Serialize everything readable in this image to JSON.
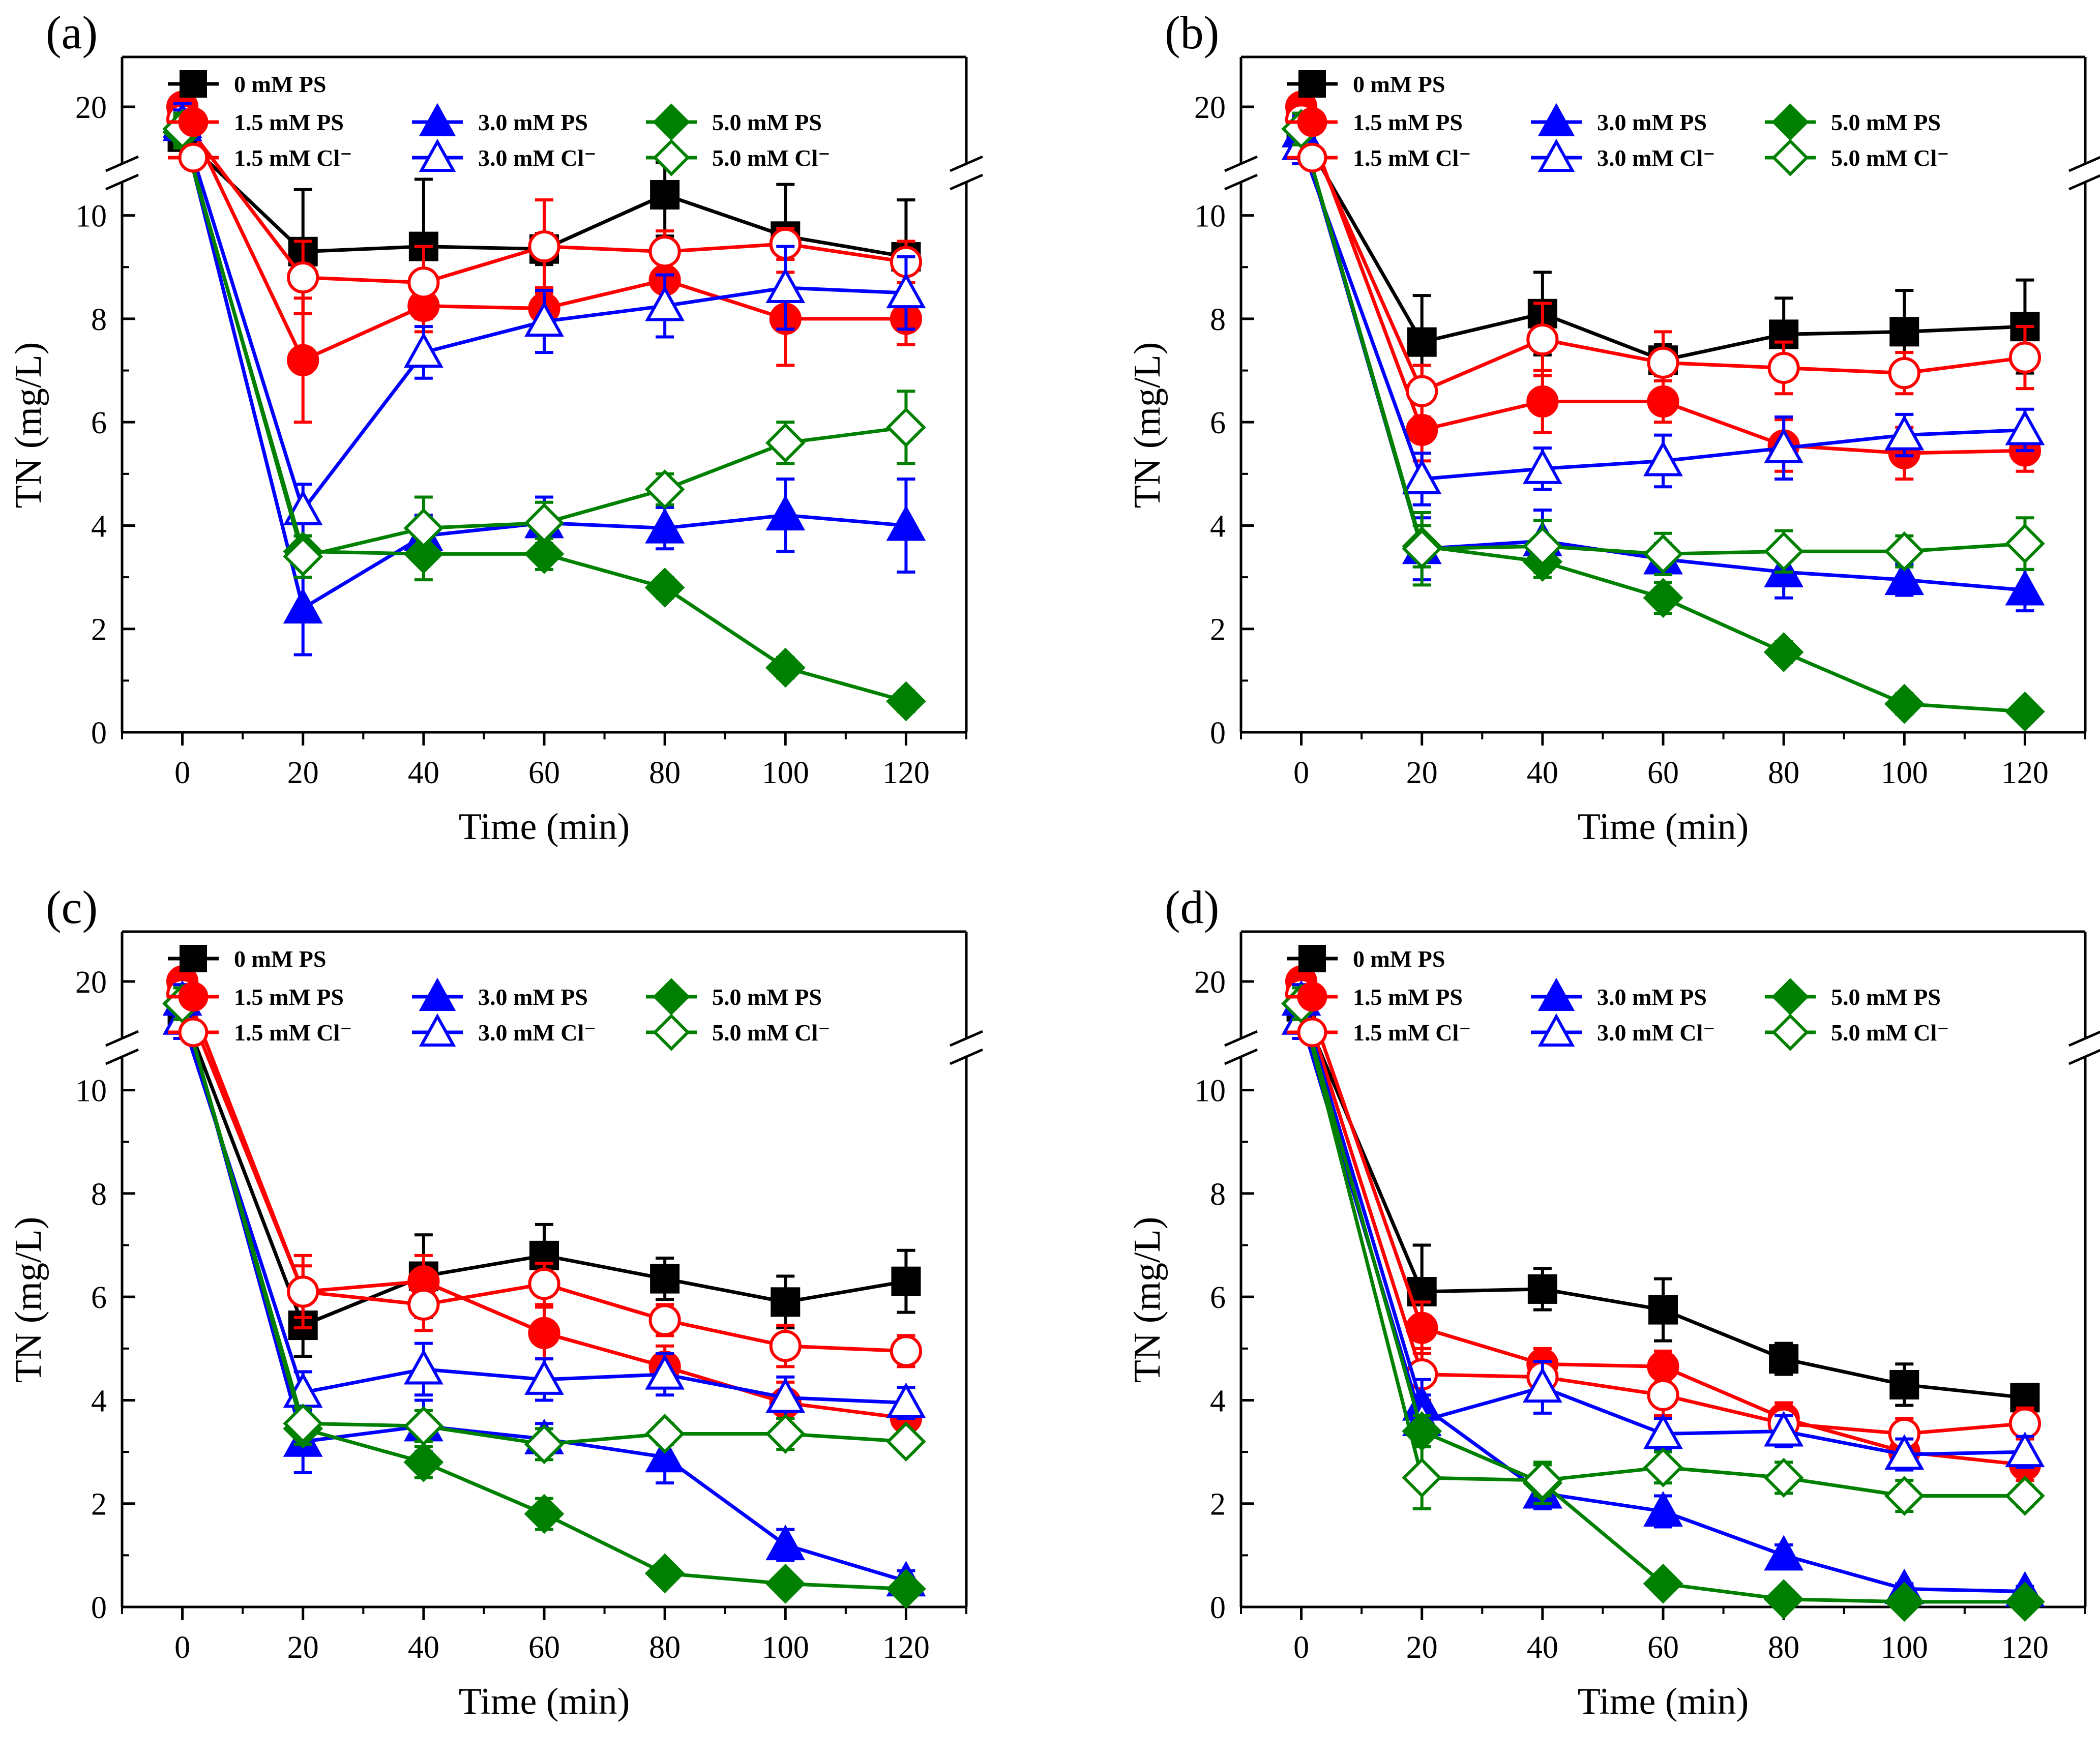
{
  "colors": {
    "0 mM PS": "#000000",
    "1.5": "#ff0000",
    "3.0": "#0000ff",
    "5.0": "#008000"
  },
  "chart_data": [
    {
      "panel": "(a)",
      "type": "line",
      "xlabel": "Time (min)",
      "ylabel": "TN (mg/L)",
      "x": [
        0,
        20,
        40,
        60,
        80,
        100,
        120
      ],
      "xticks": [
        "0",
        "20",
        "40",
        "60",
        "80",
        "100",
        "120"
      ],
      "yticks": [
        "0",
        "2",
        "4",
        "6",
        "8",
        "10",
        "20"
      ],
      "axis_break": "between 11 and 20 on the y-axis",
      "series": [
        {
          "name": "0 mM PS",
          "color": "#000000",
          "marker": "square",
          "filled": true,
          "values": [
            15.2,
            9.3,
            9.4,
            9.35,
            10.4,
            9.6,
            9.2
          ],
          "errors": [
            1.5,
            1.2,
            1.3,
            0.3,
            0.8,
            1.0,
            1.1
          ]
        },
        {
          "name": "1.5 mM PS",
          "color": "#ff0000",
          "marker": "circle",
          "filled": true,
          "values": [
            20.0,
            7.2,
            8.25,
            8.2,
            8.75,
            8.0,
            8.0
          ],
          "errors": [
            1.0,
            1.2,
            0.5,
            0.4,
            0.5,
            0.9,
            0.5
          ]
        },
        {
          "name": "1.5 mM Cl⁻",
          "color": "#ff0000",
          "marker": "circle",
          "filled": false,
          "values": [
            18.0,
            8.8,
            8.7,
            9.4,
            9.3,
            9.45,
            9.1
          ],
          "errors": [
            2.0,
            0.7,
            0.7,
            0.9,
            0.4,
            0.3,
            0.4
          ]
        },
        {
          "name": "3.0 mM PS",
          "color": "#0000ff",
          "marker": "triangle",
          "filled": true,
          "values": [
            17.0,
            2.4,
            3.8,
            4.05,
            3.95,
            4.2,
            4.0
          ],
          "errors": [
            2.5,
            0.9,
            0.4,
            0.5,
            0.4,
            0.7,
            0.9
          ]
        },
        {
          "name": "3.0 mM Cl⁻",
          "color": "#0000ff",
          "marker": "triangle",
          "filled": false,
          "values": [
            17.5,
            4.3,
            7.35,
            7.95,
            8.25,
            8.6,
            8.5
          ],
          "errors": [
            3.0,
            0.5,
            0.5,
            0.6,
            0.6,
            0.8,
            0.7
          ]
        },
        {
          "name": "5.0 mM PS",
          "color": "#008000",
          "marker": "diamond",
          "filled": true,
          "values": [
            16.0,
            3.5,
            3.45,
            3.45,
            2.8,
            1.25,
            0.6
          ],
          "errors": [
            2.5,
            0.3,
            0.5,
            0.3,
            0.2,
            0.2,
            0.2
          ]
        },
        {
          "name": "5.0 mM Cl⁻",
          "color": "#008000",
          "marker": "diamond",
          "filled": false,
          "values": [
            16.5,
            3.4,
            3.95,
            4.05,
            4.7,
            5.6,
            5.9
          ],
          "errors": [
            2.5,
            0.4,
            0.6,
            0.4,
            0.3,
            0.4,
            0.7
          ]
        }
      ]
    },
    {
      "panel": "(b)",
      "type": "line",
      "xlabel": "Time (min)",
      "ylabel": "TN (mg/L)",
      "x": [
        0,
        20,
        40,
        60,
        80,
        100,
        120
      ],
      "xticks": [
        "0",
        "20",
        "40",
        "60",
        "80",
        "100",
        "120"
      ],
      "yticks": [
        "0",
        "2",
        "4",
        "6",
        "8",
        "10",
        "20"
      ],
      "axis_break": "between 11 and 20 on the y-axis",
      "series": [
        {
          "name": "0 mM PS",
          "color": "#000000",
          "marker": "square",
          "filled": true,
          "values": [
            16.0,
            7.55,
            8.1,
            7.2,
            7.7,
            7.75,
            7.85
          ],
          "errors": [
            1.5,
            0.9,
            0.8,
            0.3,
            0.7,
            0.8,
            0.9
          ]
        },
        {
          "name": "1.5 mM PS",
          "color": "#ff0000",
          "marker": "circle",
          "filled": true,
          "values": [
            20.0,
            5.85,
            6.4,
            6.4,
            5.55,
            5.4,
            5.45
          ],
          "errors": [
            1.0,
            0.6,
            0.6,
            0.4,
            0.5,
            0.5,
            0.4
          ]
        },
        {
          "name": "1.5 mM Cl⁻",
          "color": "#ff0000",
          "marker": "circle",
          "filled": false,
          "values": [
            18.0,
            6.6,
            7.6,
            7.15,
            7.05,
            6.95,
            7.25
          ],
          "errors": [
            2.0,
            0.5,
            0.7,
            0.6,
            0.5,
            0.4,
            0.6
          ]
        },
        {
          "name": "3.0 mM PS",
          "color": "#0000ff",
          "marker": "triangle",
          "filled": true,
          "values": [
            16.0,
            3.55,
            3.7,
            3.35,
            3.1,
            2.95,
            2.75
          ],
          "errors": [
            2.5,
            0.6,
            0.6,
            0.3,
            0.5,
            0.3,
            0.4
          ]
        },
        {
          "name": "3.0 mM Cl⁻",
          "color": "#0000ff",
          "marker": "triangle",
          "filled": false,
          "values": [
            14.0,
            4.9,
            5.1,
            5.25,
            5.5,
            5.75,
            5.85
          ],
          "errors": [
            3.0,
            0.5,
            0.4,
            0.5,
            0.6,
            0.4,
            0.4
          ]
        },
        {
          "name": "5.0 mM PS",
          "color": "#008000",
          "marker": "diamond",
          "filled": true,
          "values": [
            16.5,
            3.6,
            3.3,
            2.6,
            1.55,
            0.55,
            0.4
          ],
          "errors": [
            2.5,
            0.4,
            0.3,
            0.3,
            0.2,
            0.2,
            0.1
          ]
        },
        {
          "name": "5.0 mM Cl⁻",
          "color": "#008000",
          "marker": "diamond",
          "filled": false,
          "values": [
            16.5,
            3.55,
            3.6,
            3.45,
            3.5,
            3.5,
            3.65
          ],
          "errors": [
            2.5,
            0.7,
            0.5,
            0.4,
            0.4,
            0.3,
            0.5
          ]
        }
      ]
    },
    {
      "panel": "(c)",
      "type": "line",
      "xlabel": "Time (min)",
      "ylabel": "TN (mg/L)",
      "x": [
        0,
        20,
        40,
        60,
        80,
        100,
        120
      ],
      "xticks": [
        "0",
        "20",
        "40",
        "60",
        "80",
        "100",
        "120"
      ],
      "yticks": [
        "0",
        "2",
        "4",
        "6",
        "8",
        "10",
        "20"
      ],
      "axis_break": "between 11 and 20 on the y-axis",
      "series": [
        {
          "name": "0 mM PS",
          "color": "#000000",
          "marker": "square",
          "filled": true,
          "values": [
            15.5,
            5.45,
            6.4,
            6.8,
            6.35,
            5.9,
            6.3
          ],
          "errors": [
            1.5,
            0.6,
            0.8,
            0.6,
            0.4,
            0.5,
            0.6
          ]
        },
        {
          "name": "1.5 mM PS",
          "color": "#ff0000",
          "marker": "circle",
          "filled": true,
          "values": [
            20.0,
            6.1,
            6.3,
            5.3,
            4.65,
            3.95,
            3.65
          ],
          "errors": [
            1.0,
            0.7,
            0.5,
            0.5,
            0.4,
            0.4,
            0.3
          ]
        },
        {
          "name": "1.5 mM Cl⁻",
          "color": "#ff0000",
          "marker": "circle",
          "filled": false,
          "values": [
            18.0,
            6.1,
            5.85,
            6.25,
            5.55,
            5.05,
            4.95
          ],
          "errors": [
            2.0,
            0.5,
            0.5,
            0.4,
            0.3,
            0.4,
            0.3
          ]
        },
        {
          "name": "3.0 mM PS",
          "color": "#0000ff",
          "marker": "triangle",
          "filled": true,
          "values": [
            17.0,
            3.2,
            3.5,
            3.25,
            2.9,
            1.2,
            0.5
          ],
          "errors": [
            2.5,
            0.6,
            0.5,
            0.3,
            0.5,
            0.3,
            0.2
          ]
        },
        {
          "name": "3.0 mM Cl⁻",
          "color": "#0000ff",
          "marker": "triangle",
          "filled": false,
          "values": [
            14.0,
            4.15,
            4.6,
            4.4,
            4.5,
            4.05,
            3.95
          ],
          "errors": [
            3.0,
            0.4,
            0.5,
            0.4,
            0.4,
            0.4,
            0.3
          ]
        },
        {
          "name": "5.0 mM PS",
          "color": "#008000",
          "marker": "diamond",
          "filled": true,
          "values": [
            16.5,
            3.45,
            2.8,
            1.8,
            0.65,
            0.45,
            0.35
          ],
          "errors": [
            2.5,
            0.3,
            0.3,
            0.3,
            0.1,
            0.1,
            0.1
          ]
        },
        {
          "name": "5.0 mM Cl⁻",
          "color": "#008000",
          "marker": "diamond",
          "filled": false,
          "values": [
            16.5,
            3.55,
            3.5,
            3.15,
            3.35,
            3.35,
            3.2
          ],
          "errors": [
            2.5,
            0.3,
            0.3,
            0.3,
            0.2,
            0.3,
            0.2
          ]
        }
      ]
    },
    {
      "panel": "(d)",
      "type": "line",
      "xlabel": "Time (min)",
      "ylabel": "TN (mg/L)",
      "x": [
        0,
        20,
        40,
        60,
        80,
        100,
        120
      ],
      "xticks": [
        "0",
        "20",
        "40",
        "60",
        "80",
        "100",
        "120"
      ],
      "yticks": [
        "0",
        "2",
        "4",
        "6",
        "8",
        "10",
        "20"
      ],
      "axis_break": "between 11 and 20 on the y-axis",
      "series": [
        {
          "name": "0 mM PS",
          "color": "#000000",
          "marker": "square",
          "filled": true,
          "values": [
            16.0,
            6.1,
            6.15,
            5.75,
            4.8,
            4.3,
            4.05
          ],
          "errors": [
            1.5,
            0.9,
            0.4,
            0.6,
            0.3,
            0.4,
            0.2
          ]
        },
        {
          "name": "1.5 mM PS",
          "color": "#ff0000",
          "marker": "circle",
          "filled": true,
          "values": [
            20.0,
            5.4,
            4.7,
            4.65,
            3.65,
            3.0,
            2.75
          ],
          "errors": [
            1.5,
            0.5,
            0.3,
            0.3,
            0.3,
            0.3,
            0.3
          ]
        },
        {
          "name": "1.5 mM Cl⁻",
          "color": "#ff0000",
          "marker": "circle",
          "filled": false,
          "values": [
            18.0,
            4.5,
            4.45,
            4.1,
            3.55,
            3.35,
            3.55
          ],
          "errors": [
            2.5,
            0.5,
            0.4,
            0.4,
            0.3,
            0.3,
            0.3
          ]
        },
        {
          "name": "3.0 mM PS",
          "color": "#0000ff",
          "marker": "triangle",
          "filled": true,
          "values": [
            17.0,
            3.9,
            2.2,
            1.85,
            1.0,
            0.35,
            0.3
          ],
          "errors": [
            2.5,
            0.5,
            0.3,
            0.3,
            0.2,
            0.1,
            0.1
          ]
        },
        {
          "name": "3.0 mM Cl⁻",
          "color": "#0000ff",
          "marker": "triangle",
          "filled": false,
          "values": [
            14.0,
            3.6,
            4.25,
            3.35,
            3.4,
            2.95,
            3.0
          ],
          "errors": [
            3.0,
            0.5,
            0.5,
            0.3,
            0.3,
            0.3,
            0.3
          ]
        },
        {
          "name": "5.0 mM PS",
          "color": "#008000",
          "marker": "diamond",
          "filled": true,
          "values": [
            16.5,
            3.4,
            2.4,
            0.45,
            0.15,
            0.1,
            0.1
          ],
          "errors": [
            2.5,
            0.3,
            0.4,
            0.1,
            0.05,
            0.05,
            0.05
          ]
        },
        {
          "name": "5.0 mM Cl⁻",
          "color": "#008000",
          "marker": "diamond",
          "filled": false,
          "values": [
            16.5,
            2.5,
            2.45,
            2.7,
            2.5,
            2.15,
            2.15
          ],
          "errors": [
            2.5,
            0.6,
            0.3,
            0.3,
            0.3,
            0.3,
            0.2
          ]
        }
      ]
    }
  ]
}
